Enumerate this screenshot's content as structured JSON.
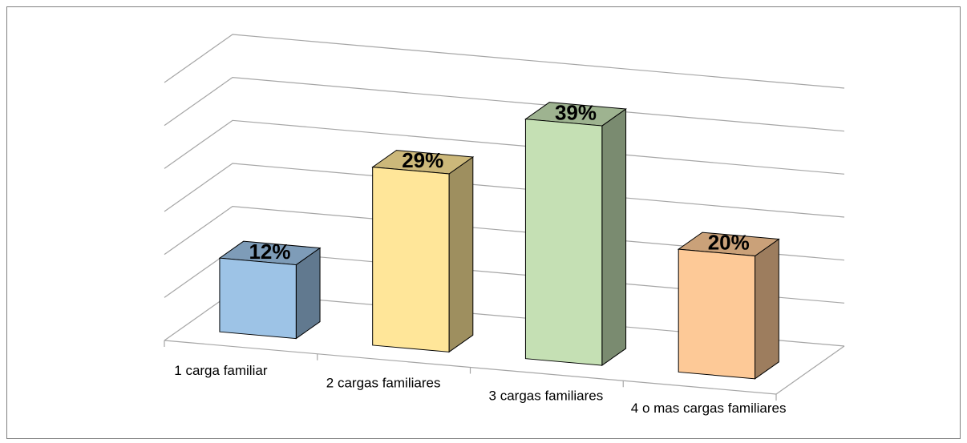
{
  "chart_data": {
    "type": "bar3d",
    "categories": [
      "1 carga familiar",
      "2 cargas familiares",
      "3 cargas familiares",
      "4 o mas cargas familiares"
    ],
    "values": [
      12,
      29,
      39,
      20
    ],
    "value_labels": [
      "12%",
      "29%",
      "39%",
      "20%"
    ],
    "colors": [
      "#9dc3e6",
      "#ffe699",
      "#c5e0b4",
      "#fdc997"
    ],
    "ylim": [
      0,
      42
    ],
    "yticks": [
      0,
      7,
      14,
      21,
      28,
      35,
      42
    ],
    "grid": true
  }
}
